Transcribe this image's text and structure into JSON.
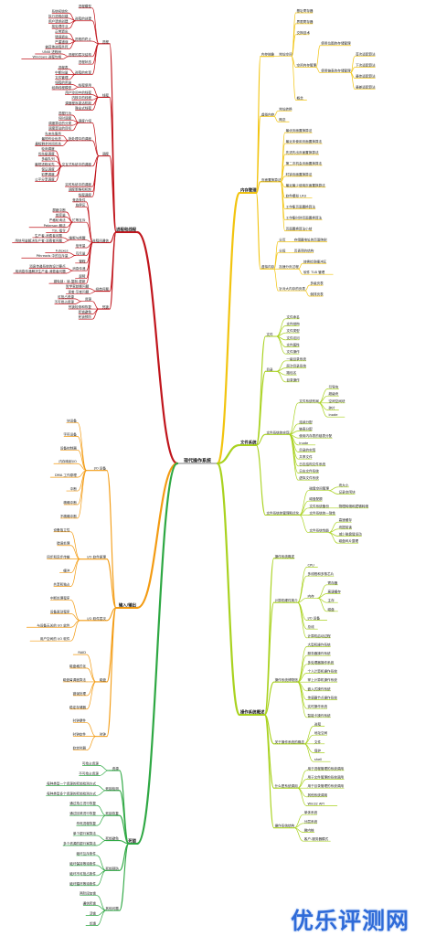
{
  "root": "现代操作系统",
  "colors": {
    "red": "#c0151c",
    "orange": "#f39b12",
    "yellow": "#f2c40f",
    "lime": "#a9d21f",
    "green": "#2ea843",
    "watermark": "#2f6bd8"
  },
  "watermark": "优乐评测网",
  "branches": [
    {
      "side": "left",
      "color": "red",
      "label": "进程和线程",
      "children": [
        {
          "label": "进程",
          "children": [
            {
              "label": "进程模型"
            },
            {
              "label": "进程的创建",
              "children": [
                {
                  "label": "系统初始化"
                },
                {
                  "label": "执行进程创建"
                },
                {
                  "label": "用户请求创建"
                },
                {
                  "label": "批处理作业"
                }
              ]
            },
            {
              "label": "进程的终止",
              "children": [
                {
                  "label": "正常退出"
                },
                {
                  "label": "错误退出"
                },
                {
                  "label": "严重错误"
                },
                {
                  "label": "被其他进程杀死"
                }
              ]
            },
            {
              "label": "进程的层次结构",
              "children": [
                {
                  "label": "UNIX 进程树"
                },
                {
                  "label": "Windows 进程句柄"
                }
              ]
            },
            {
              "label": "进程状态"
            },
            {
              "label": "进程的实现",
              "children": [
                {
                  "label": "进程表"
                },
                {
                  "label": "中断向量"
                },
                {
                  "label": "文件管理"
                }
              ]
            }
          ]
        },
        {
          "label": "线程",
          "children": [
            {
              "label": "线程使用",
              "children": [
                {
                  "label": "线程的用途"
                },
                {
                  "label": "经典线程模型"
                }
              ]
            },
            {
              "label": "用户空间中的线程"
            },
            {
              "label": "内核中的线程"
            },
            {
              "label": "调度程序激活机制"
            },
            {
              "label": "弹出式线程"
            }
          ]
        },
        {
          "label": "调度",
          "children": [
            {
              "label": "调度介绍",
              "children": [
                {
                  "label": "进程行为"
                },
                {
                  "label": "何时调度"
                },
                {
                  "label": "调度算法的分类"
                },
                {
                  "label": "调度算法的目标"
                }
              ]
            },
            {
              "label": "批处理中的调度",
              "children": [
                {
                  "label": "先来先服务"
                },
                {
                  "label": "最短作业优先"
                },
                {
                  "label": "最短剩余时间优先"
                }
              ]
            },
            {
              "label": "交互式系统中的调度",
              "children": [
                {
                  "label": "轮询调度"
                },
                {
                  "label": "优先级调度"
                },
                {
                  "label": "多级队列"
                },
                {
                  "label": "最短进程优先"
                },
                {
                  "label": "保证调度"
                },
                {
                  "label": "彩票调度"
                },
                {
                  "label": "公平分享调度"
                }
              ]
            },
            {
              "label": "实时系统中的调度"
            },
            {
              "label": "调度策略和机制"
            },
            {
              "label": "线程调度"
            }
          ]
        },
        {
          "label": "进程间通信",
          "children": [
            {
              "label": "竞态条件"
            },
            {
              "label": "临界区"
            },
            {
              "label": "忙等互斥",
              "children": [
                {
                  "label": "屏蔽中断"
                },
                {
                  "label": "锁变量"
                },
                {
                  "label": "严格轮询法"
                },
                {
                  "label": "Peterson 解法"
                },
                {
                  "label": "TSL 指令"
                }
              ]
            },
            {
              "label": "睡眠与唤醒",
              "children": [
                {
                  "label": "生产者-消费者问题"
                },
                {
                  "label": "用信号量解决生产者-消费者问题"
                }
              ]
            },
            {
              "label": "信号量"
            },
            {
              "label": "互斥量",
              "children": [
                {
                  "label": "Futexes"
                },
                {
                  "label": "Pthreads 中的互斥量"
                }
              ]
            },
            {
              "label": "管程"
            },
            {
              "label": "消息传递",
              "children": [
                {
                  "label": "消息传递系统的设计要点"
                },
                {
                  "label": "用消息传递解决生产者-消费者问题"
                }
              ]
            },
            {
              "label": "屏障"
            },
            {
              "label": "避免锁：读-复制-更新"
            }
          ]
        },
        {
          "label": "经典问题",
          "children": [
            {
              "label": "哲学家就餐问题"
            },
            {
              "label": "读者-写者问题"
            }
          ]
        },
        {
          "label": "死锁",
          "children": [
            {
              "label": "资源",
              "children": [
                {
                  "label": "可抢占资源"
                },
                {
                  "label": "不可抢占资源"
                }
              ]
            },
            {
              "label": "死锁检测和恢复"
            },
            {
              "label": "死锁避免"
            },
            {
              "label": "死锁预防"
            }
          ]
        }
      ]
    },
    {
      "side": "left",
      "color": "orange",
      "label": "输入/输出",
      "children": [
        {
          "label": "I/O 设备",
          "children": [
            {
              "label": "块设备"
            },
            {
              "label": "字符设备"
            },
            {
              "label": "设备控制器"
            },
            {
              "label": "内存映射I/O"
            },
            {
              "label": "DMA 工作原理"
            },
            {
              "label": "中断"
            },
            {
              "label": "精确中断"
            },
            {
              "label": "不精确中断"
            }
          ]
        },
        {
          "label": "I/O 软件原理",
          "children": [
            {
              "label": "设备独立性"
            },
            {
              "label": "错误处理"
            },
            {
              "label": "同步和异步传输"
            },
            {
              "label": "缓冲"
            },
            {
              "label": "共享和独占"
            }
          ]
        },
        {
          "label": "I/O 软件层次",
          "children": [
            {
              "label": "中断处理程序"
            },
            {
              "label": "设备驱动程序"
            },
            {
              "label": "与设备无关的 I/O 软件"
            },
            {
              "label": "用户空间的 I/O 软件"
            }
          ]
        },
        {
          "label": "磁盘",
          "children": [
            {
              "label": "RAID"
            },
            {
              "label": "磁盘格式化"
            },
            {
              "label": "磁盘臂调度算法"
            },
            {
              "label": "错误处理"
            },
            {
              "label": "稳定存储器"
            }
          ]
        },
        {
          "label": "时钟",
          "children": [
            {
              "label": "时钟硬件"
            },
            {
              "label": "时钟软件"
            },
            {
              "label": "软定时器"
            }
          ]
        }
      ]
    },
    {
      "side": "left",
      "color": "green",
      "label": "死锁",
      "children": [
        {
          "label": "资源",
          "children": [
            {
              "label": "可抢占资源"
            },
            {
              "label": "不可抢占资源"
            }
          ]
        },
        {
          "label": "死锁检测",
          "children": [
            {
              "label": "每种类型一个资源的死锁检测方式"
            },
            {
              "label": "每种类型多个资源的死锁检测方式"
            }
          ]
        },
        {
          "label": "死锁恢复",
          "children": [
            {
              "label": "通过抢占进行恢复"
            },
            {
              "label": "通过回滚进行恢复"
            },
            {
              "label": "杀死进程恢复"
            }
          ]
        },
        {
          "label": "死锁避免",
          "children": [
            {
              "label": "单个银行家算法"
            },
            {
              "label": "多个资源的银行家算法"
            }
          ]
        },
        {
          "label": "死锁预防",
          "children": [
            {
              "label": "破坏互斥条件"
            },
            {
              "label": "破坏保持等待条件"
            },
            {
              "label": "破坏不可抢占条件"
            },
            {
              "label": "破坏循环等待条件"
            }
          ]
        },
        {
          "label": "其他问题",
          "children": [
            {
              "label": "两阶段加锁"
            },
            {
              "label": "通信死锁"
            },
            {
              "label": "活锁"
            },
            {
              "label": "饥饿"
            }
          ]
        }
      ]
    },
    {
      "side": "right",
      "color": "yellow",
      "label": "内存管理",
      "children": [
        {
          "label": "内存抽象",
          "children": [
            {
              "label": "地址空间",
              "children": [
                {
                  "label": "基址寄存器"
                },
                {
                  "label": "界限寄存器"
                },
                {
                  "label": "交换技术"
                },
                {
                  "label": "空闲内存管理",
                  "children": [
                    {
                      "label": "使用位图的存储管理"
                    },
                    {
                      "label": "使用链表的存储管理",
                      "children": [
                        {
                          "label": "首次适配算法"
                        },
                        {
                          "label": "下次适配算法"
                        },
                        {
                          "label": "最佳适配算法"
                        },
                        {
                          "label": "最差适配算法"
                        }
                      ]
                    }
                  ]
                },
                {
                  "label": "概念"
                }
              ]
            }
          ]
        },
        {
          "label": "虚拟内存",
          "children": [
            {
              "label": "地址转换"
            },
            {
              "label": "概念"
            }
          ]
        },
        {
          "label": "页面置换算法",
          "children": [
            {
              "label": "最优页面置换算法"
            },
            {
              "label": "最近未使用页面置换算法"
            },
            {
              "label": "先进先出页面置换算法"
            },
            {
              "label": "第二次机会页面置换算法"
            },
            {
              "label": "时钟页面置换算法"
            },
            {
              "label": "最近最少使用页面置换算法"
            },
            {
              "label": "软件模拟 LRU"
            },
            {
              "label": "工作集页面置换算法"
            },
            {
              "label": "工作集时钟页面置换算法"
            },
            {
              "label": "页面置换算法小结"
            }
          ]
        },
        {
          "label": "虚拟内存",
          "children": [
            {
              "label": "分页",
              "children": [
                {
                  "label": "存储器地址的页面映射"
                }
              ]
            },
            {
              "label": "分段",
              "children": [
                {
                  "label": "页表项的结构"
                }
              ]
            },
            {
              "label": "加速分页过程",
              "children": [
                {
                  "label": "转换检测缓冲区"
                },
                {
                  "label": "软件 TLB 管理"
                }
              ]
            },
            {
              "label": "针对大内存的页表",
              "children": [
                {
                  "label": "多级页表"
                },
                {
                  "label": "倒排页表"
                }
              ]
            }
          ]
        }
      ]
    },
    {
      "side": "right",
      "color": "lime",
      "label": "文件系统",
      "children": [
        {
          "label": "文件",
          "children": [
            {
              "label": "文件命名"
            },
            {
              "label": "文件结构"
            },
            {
              "label": "文件类型"
            },
            {
              "label": "文件访问"
            },
            {
              "label": "文件属性"
            },
            {
              "label": "文件操作"
            }
          ]
        },
        {
          "label": "目录",
          "children": [
            {
              "label": "一级目录系统"
            },
            {
              "label": "层次目录系统"
            },
            {
              "label": "路径名"
            },
            {
              "label": "目录操作"
            }
          ]
        },
        {
          "label": "文件系统的实现",
          "children": [
            {
              "label": "文件系统布局",
              "children": [
                {
                  "label": "引导块"
                },
                {
                  "label": "超级块"
                },
                {
                  "label": "空闲空间块"
                },
                {
                  "label": "碎片"
                },
                {
                  "label": "inode"
                }
              ]
            },
            {
              "label": "连续分配"
            },
            {
              "label": "链表分配"
            },
            {
              "label": "使用内存表的链表分配"
            },
            {
              "label": "inode"
            },
            {
              "label": "目录的实现"
            },
            {
              "label": "共享文件"
            },
            {
              "label": "日志结构文件系统"
            },
            {
              "label": "日志文件系统"
            },
            {
              "label": "虚拟文件系统"
            }
          ]
        },
        {
          "label": "文件系统的管理和优化",
          "children": [
            {
              "label": "磁盘空间管理",
              "children": [
                {
                  "label": "块大小"
                },
                {
                  "label": "记录空闲块"
                }
              ]
            },
            {
              "label": "磁盘配额"
            },
            {
              "label": "文件系统备份",
              "children": [
                {
                  "label": "物理转储和逻辑转储"
                }
              ]
            },
            {
              "label": "文件系统的一致性"
            },
            {
              "label": "文件系统性能",
              "children": [
                {
                  "label": "高速缓存"
                },
                {
                  "label": "块提前读"
                },
                {
                  "label": "减少磁盘臂运动"
                },
                {
                  "label": "磁盘碎片整理"
                }
              ]
            }
          ]
        }
      ]
    },
    {
      "side": "right",
      "color": "lime",
      "label": "操作系统概述",
      "children": [
        {
          "label": "操作系统概述"
        },
        {
          "label": "计算机硬件简介",
          "children": [
            {
              "label": "CPU"
            },
            {
              "label": "多线程和多核芯片"
            },
            {
              "label": "内存",
              "children": [
                {
                  "label": "寄存器"
                },
                {
                  "label": "高速缓存"
                },
                {
                  "label": "主存"
                },
                {
                  "label": "磁盘"
                }
              ]
            },
            {
              "label": "I/O 设备"
            },
            {
              "label": "总线"
            },
            {
              "label": "计算机启动过程"
            }
          ]
        },
        {
          "label": "操作系统博物馆",
          "children": [
            {
              "label": "大型机操作系统"
            },
            {
              "label": "服务器操作系统"
            },
            {
              "label": "多处理器操作系统"
            },
            {
              "label": "个人计算机操作系统"
            },
            {
              "label": "掌上计算机操作系统"
            },
            {
              "label": "嵌入式操作系统"
            },
            {
              "label": "传感器节点操作系统"
            },
            {
              "label": "实时操作系统"
            },
            {
              "label": "智能卡操作系统"
            }
          ]
        },
        {
          "label": "关于操作系统的概念",
          "children": [
            {
              "label": "进程"
            },
            {
              "label": "地址空间"
            },
            {
              "label": "文件"
            },
            {
              "label": "保护"
            },
            {
              "label": "shell"
            }
          ]
        },
        {
          "label": "什么是系统调用",
          "children": [
            {
              "label": "用于进程管理的系统调用"
            },
            {
              "label": "用于文件管理的系统调用"
            },
            {
              "label": "用于目录管理的系统调用"
            },
            {
              "label": "其他系统调用"
            },
            {
              "label": "Win32 API"
            }
          ]
        },
        {
          "label": "操作系统结构",
          "children": [
            {
              "label": "单体系统"
            },
            {
              "label": "分层系统"
            },
            {
              "label": "微内核"
            },
            {
              "label": "客户-服务器模式"
            }
          ]
        }
      ]
    }
  ]
}
